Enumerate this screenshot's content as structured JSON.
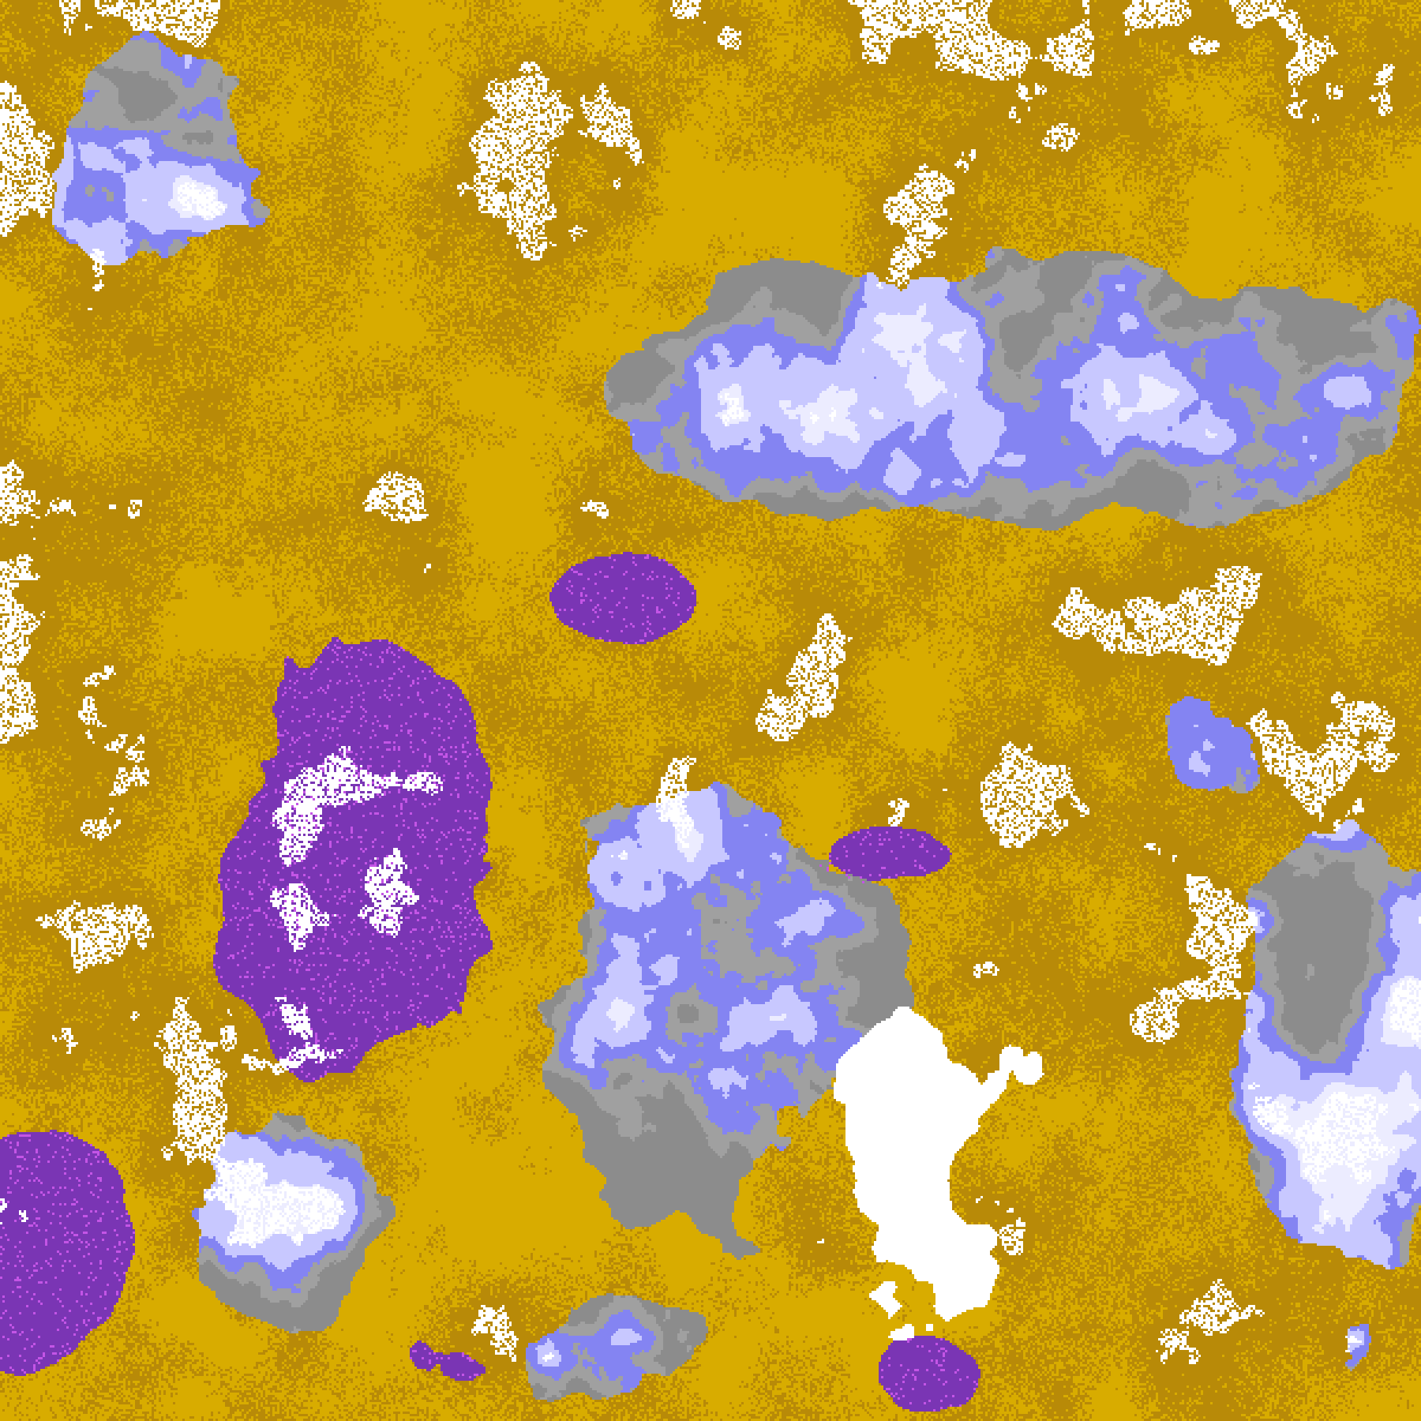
{
  "map": {
    "type": "classified-raster",
    "palette": {
      "clear": "#FFFFFF",
      "gold": "#D8AC00",
      "dark_gold": "#B88A08",
      "purple": "#7A35B4",
      "magenta": "#C455E6",
      "gray": "#A0A0A0",
      "dark_gray": "#8C8C8C",
      "periwinkle": "#8484F2",
      "lavender": "#C8C8FF",
      "pale_lavender": "#ECECFF"
    }
  }
}
